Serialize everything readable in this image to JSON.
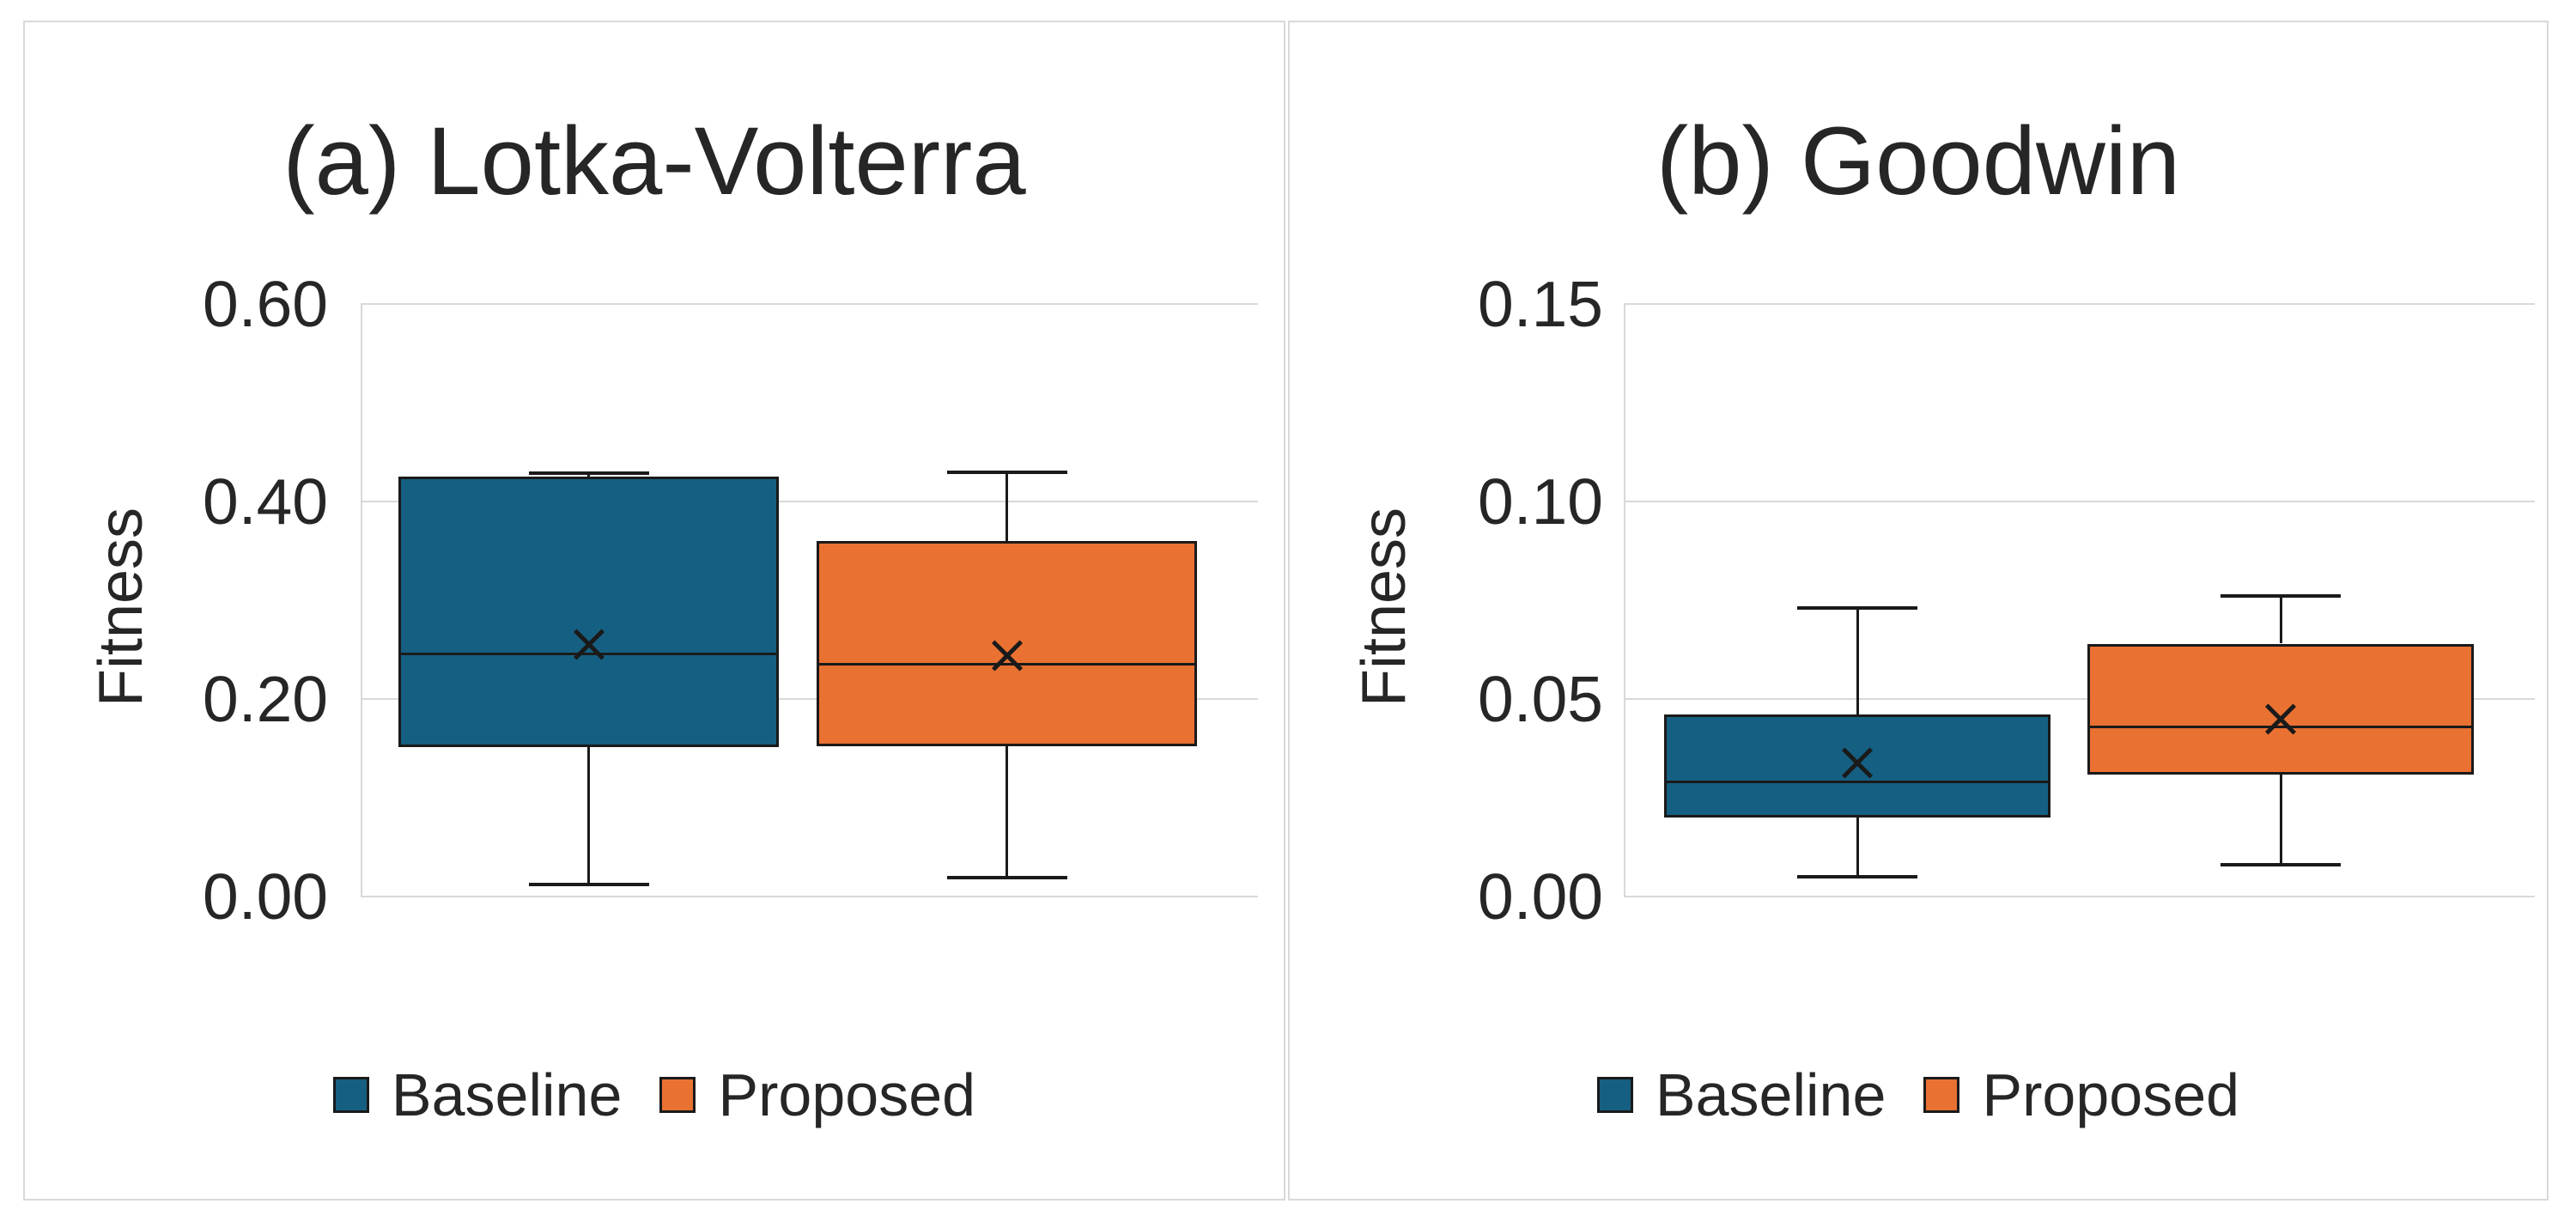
{
  "figure": {
    "background": "#FFFFFF",
    "panel_border_color": "#D9D9D9"
  },
  "colors": {
    "baseline": "#156082",
    "proposed": "#E97132",
    "box_stroke": "#1A1A1A",
    "gridline": "#D9D9D9",
    "text": "#262626"
  },
  "legend": {
    "items": [
      {
        "label": "Baseline",
        "color": "#156082"
      },
      {
        "label": "Proposed",
        "color": "#E97132"
      }
    ]
  },
  "chart_data": [
    {
      "type": "box",
      "title": "(a) Lotka-Volterra",
      "ylabel": "Fitness",
      "ylim": [
        0,
        0.6
      ],
      "yticks": {
        "labels": [
          "0.60",
          "0.40",
          "0.20",
          "0.00"
        ],
        "values": [
          0.6,
          0.4,
          0.2,
          0.0
        ]
      },
      "grid": true,
      "legend_position": "bottom",
      "series": [
        {
          "name": "Baseline",
          "color": "#156082",
          "min": 0.012,
          "q1": 0.151,
          "median": 0.246,
          "mean": 0.256,
          "q3": 0.425,
          "max": 0.429
        },
        {
          "name": "Proposed",
          "color": "#E97132",
          "min": 0.019,
          "q1": 0.152,
          "median": 0.235,
          "mean": 0.244,
          "q3": 0.36,
          "max": 0.43
        }
      ]
    },
    {
      "type": "box",
      "title": "(b) Goodwin",
      "ylabel": "Fitness",
      "ylim": [
        0,
        0.15
      ],
      "yticks": {
        "labels": [
          "0.15",
          "0.10",
          "0.05",
          "0.00"
        ],
        "values": [
          0.15,
          0.1,
          0.05,
          0.0
        ]
      },
      "grid": true,
      "legend_position": "bottom",
      "series": [
        {
          "name": "Baseline",
          "color": "#156082",
          "min": 0.005,
          "q1": 0.02,
          "median": 0.029,
          "mean": 0.034,
          "q3": 0.046,
          "max": 0.073
        },
        {
          "name": "Proposed",
          "color": "#E97132",
          "min": 0.008,
          "q1": 0.031,
          "median": 0.043,
          "mean": 0.045,
          "q3": 0.064,
          "max": 0.076
        }
      ]
    }
  ]
}
